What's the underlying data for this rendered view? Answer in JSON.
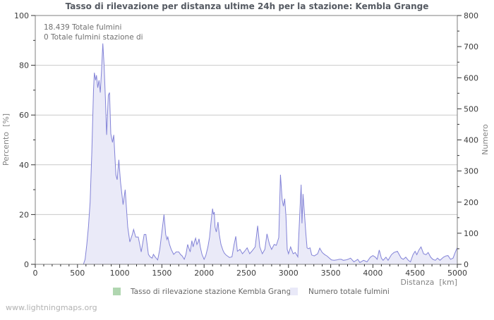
{
  "page": {
    "footer_watermark": "www.lightningmaps.org"
  },
  "chart_data": {
    "type": "area",
    "title": "Tasso di rilevazione per distanza ultime 24h per la stazione: Kembla Grange",
    "annotations": [
      "18.439 Totale fulmini",
      "0 Totale fulmini stazione di"
    ],
    "x_axis": {
      "label": "Distanza  [km]",
      "min": 0,
      "max": 5000,
      "major_step": 500,
      "minor_step": 100
    },
    "y_left_axis": {
      "label": "Percento  [%]",
      "min": 0,
      "max": 100,
      "major_step": 20,
      "minor_step": 10
    },
    "y_right_axis": {
      "label": "Numero",
      "min": 0,
      "max": 800,
      "major_step": 100,
      "minor_step": 50
    },
    "grid": "horizontal-major-only",
    "legend": [
      {
        "label": "Tasso di rilevazione stazione Kembla Grange",
        "swatch_color": "#b0d6b0"
      },
      {
        "label": "Numero totale fulmini",
        "swatch_color": "#e9e9f8"
      }
    ],
    "colors": {
      "grid": "#c9c9c9",
      "frame": "#7f7f7f",
      "tick": "#333333",
      "line": "#8383d7",
      "fill": "#eaeaf8",
      "station_series": "#b0d6b0"
    },
    "series": [
      {
        "name": "Tasso di rilevazione stazione Kembla Grange",
        "axis": "left",
        "constant_value": 0
      },
      {
        "name": "Numero totale fulmini",
        "axis": "right",
        "points": [
          [
            0,
            0
          ],
          [
            200,
            0
          ],
          [
            400,
            0
          ],
          [
            500,
            0
          ],
          [
            550,
            0
          ],
          [
            570,
            0
          ],
          [
            590,
            16
          ],
          [
            610,
            64
          ],
          [
            630,
            120
          ],
          [
            650,
            200
          ],
          [
            670,
            360
          ],
          [
            690,
            560
          ],
          [
            700,
            616
          ],
          [
            715,
            592
          ],
          [
            725,
            608
          ],
          [
            740,
            568
          ],
          [
            755,
            592
          ],
          [
            770,
            552
          ],
          [
            785,
            624
          ],
          [
            800,
            710
          ],
          [
            815,
            640
          ],
          [
            830,
            536
          ],
          [
            845,
            416
          ],
          [
            865,
            544
          ],
          [
            880,
            552
          ],
          [
            895,
            420
          ],
          [
            915,
            392
          ],
          [
            930,
            416
          ],
          [
            955,
            288
          ],
          [
            970,
            272
          ],
          [
            990,
            336
          ],
          [
            1010,
            264
          ],
          [
            1040,
            192
          ],
          [
            1065,
            240
          ],
          [
            1095,
            120
          ],
          [
            1120,
            72
          ],
          [
            1150,
            96
          ],
          [
            1165,
            112
          ],
          [
            1190,
            88
          ],
          [
            1220,
            88
          ],
          [
            1255,
            40
          ],
          [
            1290,
            96
          ],
          [
            1310,
            96
          ],
          [
            1340,
            32
          ],
          [
            1360,
            24
          ],
          [
            1385,
            20
          ],
          [
            1400,
            32
          ],
          [
            1420,
            24
          ],
          [
            1450,
            14
          ],
          [
            1475,
            48
          ],
          [
            1500,
            104
          ],
          [
            1525,
            160
          ],
          [
            1545,
            96
          ],
          [
            1560,
            80
          ],
          [
            1570,
            88
          ],
          [
            1590,
            64
          ],
          [
            1610,
            48
          ],
          [
            1640,
            32
          ],
          [
            1670,
            40
          ],
          [
            1700,
            40
          ],
          [
            1720,
            32
          ],
          [
            1740,
            27
          ],
          [
            1765,
            16
          ],
          [
            1785,
            32
          ],
          [
            1805,
            64
          ],
          [
            1820,
            52
          ],
          [
            1835,
            40
          ],
          [
            1855,
            76
          ],
          [
            1870,
            56
          ],
          [
            1885,
            72
          ],
          [
            1900,
            84
          ],
          [
            1915,
            64
          ],
          [
            1930,
            72
          ],
          [
            1940,
            82
          ],
          [
            1955,
            56
          ],
          [
            1975,
            32
          ],
          [
            2000,
            16
          ],
          [
            2020,
            28
          ],
          [
            2045,
            56
          ],
          [
            2065,
            88
          ],
          [
            2085,
            144
          ],
          [
            2100,
            179
          ],
          [
            2110,
            160
          ],
          [
            2120,
            168
          ],
          [
            2130,
            120
          ],
          [
            2145,
            104
          ],
          [
            2165,
            136
          ],
          [
            2180,
            96
          ],
          [
            2200,
            64
          ],
          [
            2225,
            44
          ],
          [
            2240,
            36
          ],
          [
            2260,
            30
          ],
          [
            2280,
            26
          ],
          [
            2300,
            22
          ],
          [
            2330,
            24
          ],
          [
            2355,
            64
          ],
          [
            2375,
            90
          ],
          [
            2395,
            42
          ],
          [
            2425,
            48
          ],
          [
            2455,
            34
          ],
          [
            2480,
            42
          ],
          [
            2510,
            53
          ],
          [
            2540,
            34
          ],
          [
            2565,
            42
          ],
          [
            2605,
            56
          ],
          [
            2635,
            124
          ],
          [
            2660,
            56
          ],
          [
            2690,
            34
          ],
          [
            2720,
            48
          ],
          [
            2745,
            98
          ],
          [
            2775,
            64
          ],
          [
            2800,
            48
          ],
          [
            2830,
            64
          ],
          [
            2855,
            61
          ],
          [
            2885,
            86
          ],
          [
            2905,
            288
          ],
          [
            2925,
            208
          ],
          [
            2940,
            187
          ],
          [
            2955,
            211
          ],
          [
            2970,
            155
          ],
          [
            2985,
            48
          ],
          [
            3000,
            34
          ],
          [
            3025,
            56
          ],
          [
            3055,
            34
          ],
          [
            3080,
            38
          ],
          [
            3110,
            24
          ],
          [
            3135,
            168
          ],
          [
            3150,
            256
          ],
          [
            3160,
            132
          ],
          [
            3172,
            226
          ],
          [
            3190,
            160
          ],
          [
            3205,
            102
          ],
          [
            3220,
            53
          ],
          [
            3235,
            50
          ],
          [
            3255,
            53
          ],
          [
            3275,
            30
          ],
          [
            3305,
            27
          ],
          [
            3345,
            34
          ],
          [
            3370,
            52
          ],
          [
            3400,
            38
          ],
          [
            3430,
            31
          ],
          [
            3455,
            27
          ],
          [
            3485,
            20
          ],
          [
            3510,
            14
          ],
          [
            3540,
            13
          ],
          [
            3570,
            14
          ],
          [
            3600,
            16
          ],
          [
            3625,
            16
          ],
          [
            3650,
            13
          ],
          [
            3680,
            14
          ],
          [
            3705,
            16
          ],
          [
            3735,
            20
          ],
          [
            3775,
            8
          ],
          [
            3820,
            16
          ],
          [
            3845,
            6
          ],
          [
            3890,
            13
          ],
          [
            3930,
            8
          ],
          [
            3970,
            23
          ],
          [
            4000,
            28
          ],
          [
            4030,
            23
          ],
          [
            4050,
            16
          ],
          [
            4075,
            46
          ],
          [
            4100,
            20
          ],
          [
            4120,
            13
          ],
          [
            4155,
            23
          ],
          [
            4180,
            13
          ],
          [
            4220,
            31
          ],
          [
            4250,
            38
          ],
          [
            4290,
            42
          ],
          [
            4335,
            20
          ],
          [
            4360,
            16
          ],
          [
            4390,
            23
          ],
          [
            4420,
            13
          ],
          [
            4445,
            8
          ],
          [
            4475,
            31
          ],
          [
            4500,
            42
          ],
          [
            4520,
            31
          ],
          [
            4545,
            46
          ],
          [
            4570,
            56
          ],
          [
            4600,
            34
          ],
          [
            4630,
            31
          ],
          [
            4655,
            38
          ],
          [
            4685,
            23
          ],
          [
            4710,
            16
          ],
          [
            4740,
            13
          ],
          [
            4765,
            20
          ],
          [
            4795,
            13
          ],
          [
            4835,
            23
          ],
          [
            4865,
            27
          ],
          [
            4890,
            28
          ],
          [
            4920,
            16
          ],
          [
            4950,
            20
          ],
          [
            4975,
            38
          ],
          [
            5000,
            54
          ]
        ]
      }
    ]
  }
}
